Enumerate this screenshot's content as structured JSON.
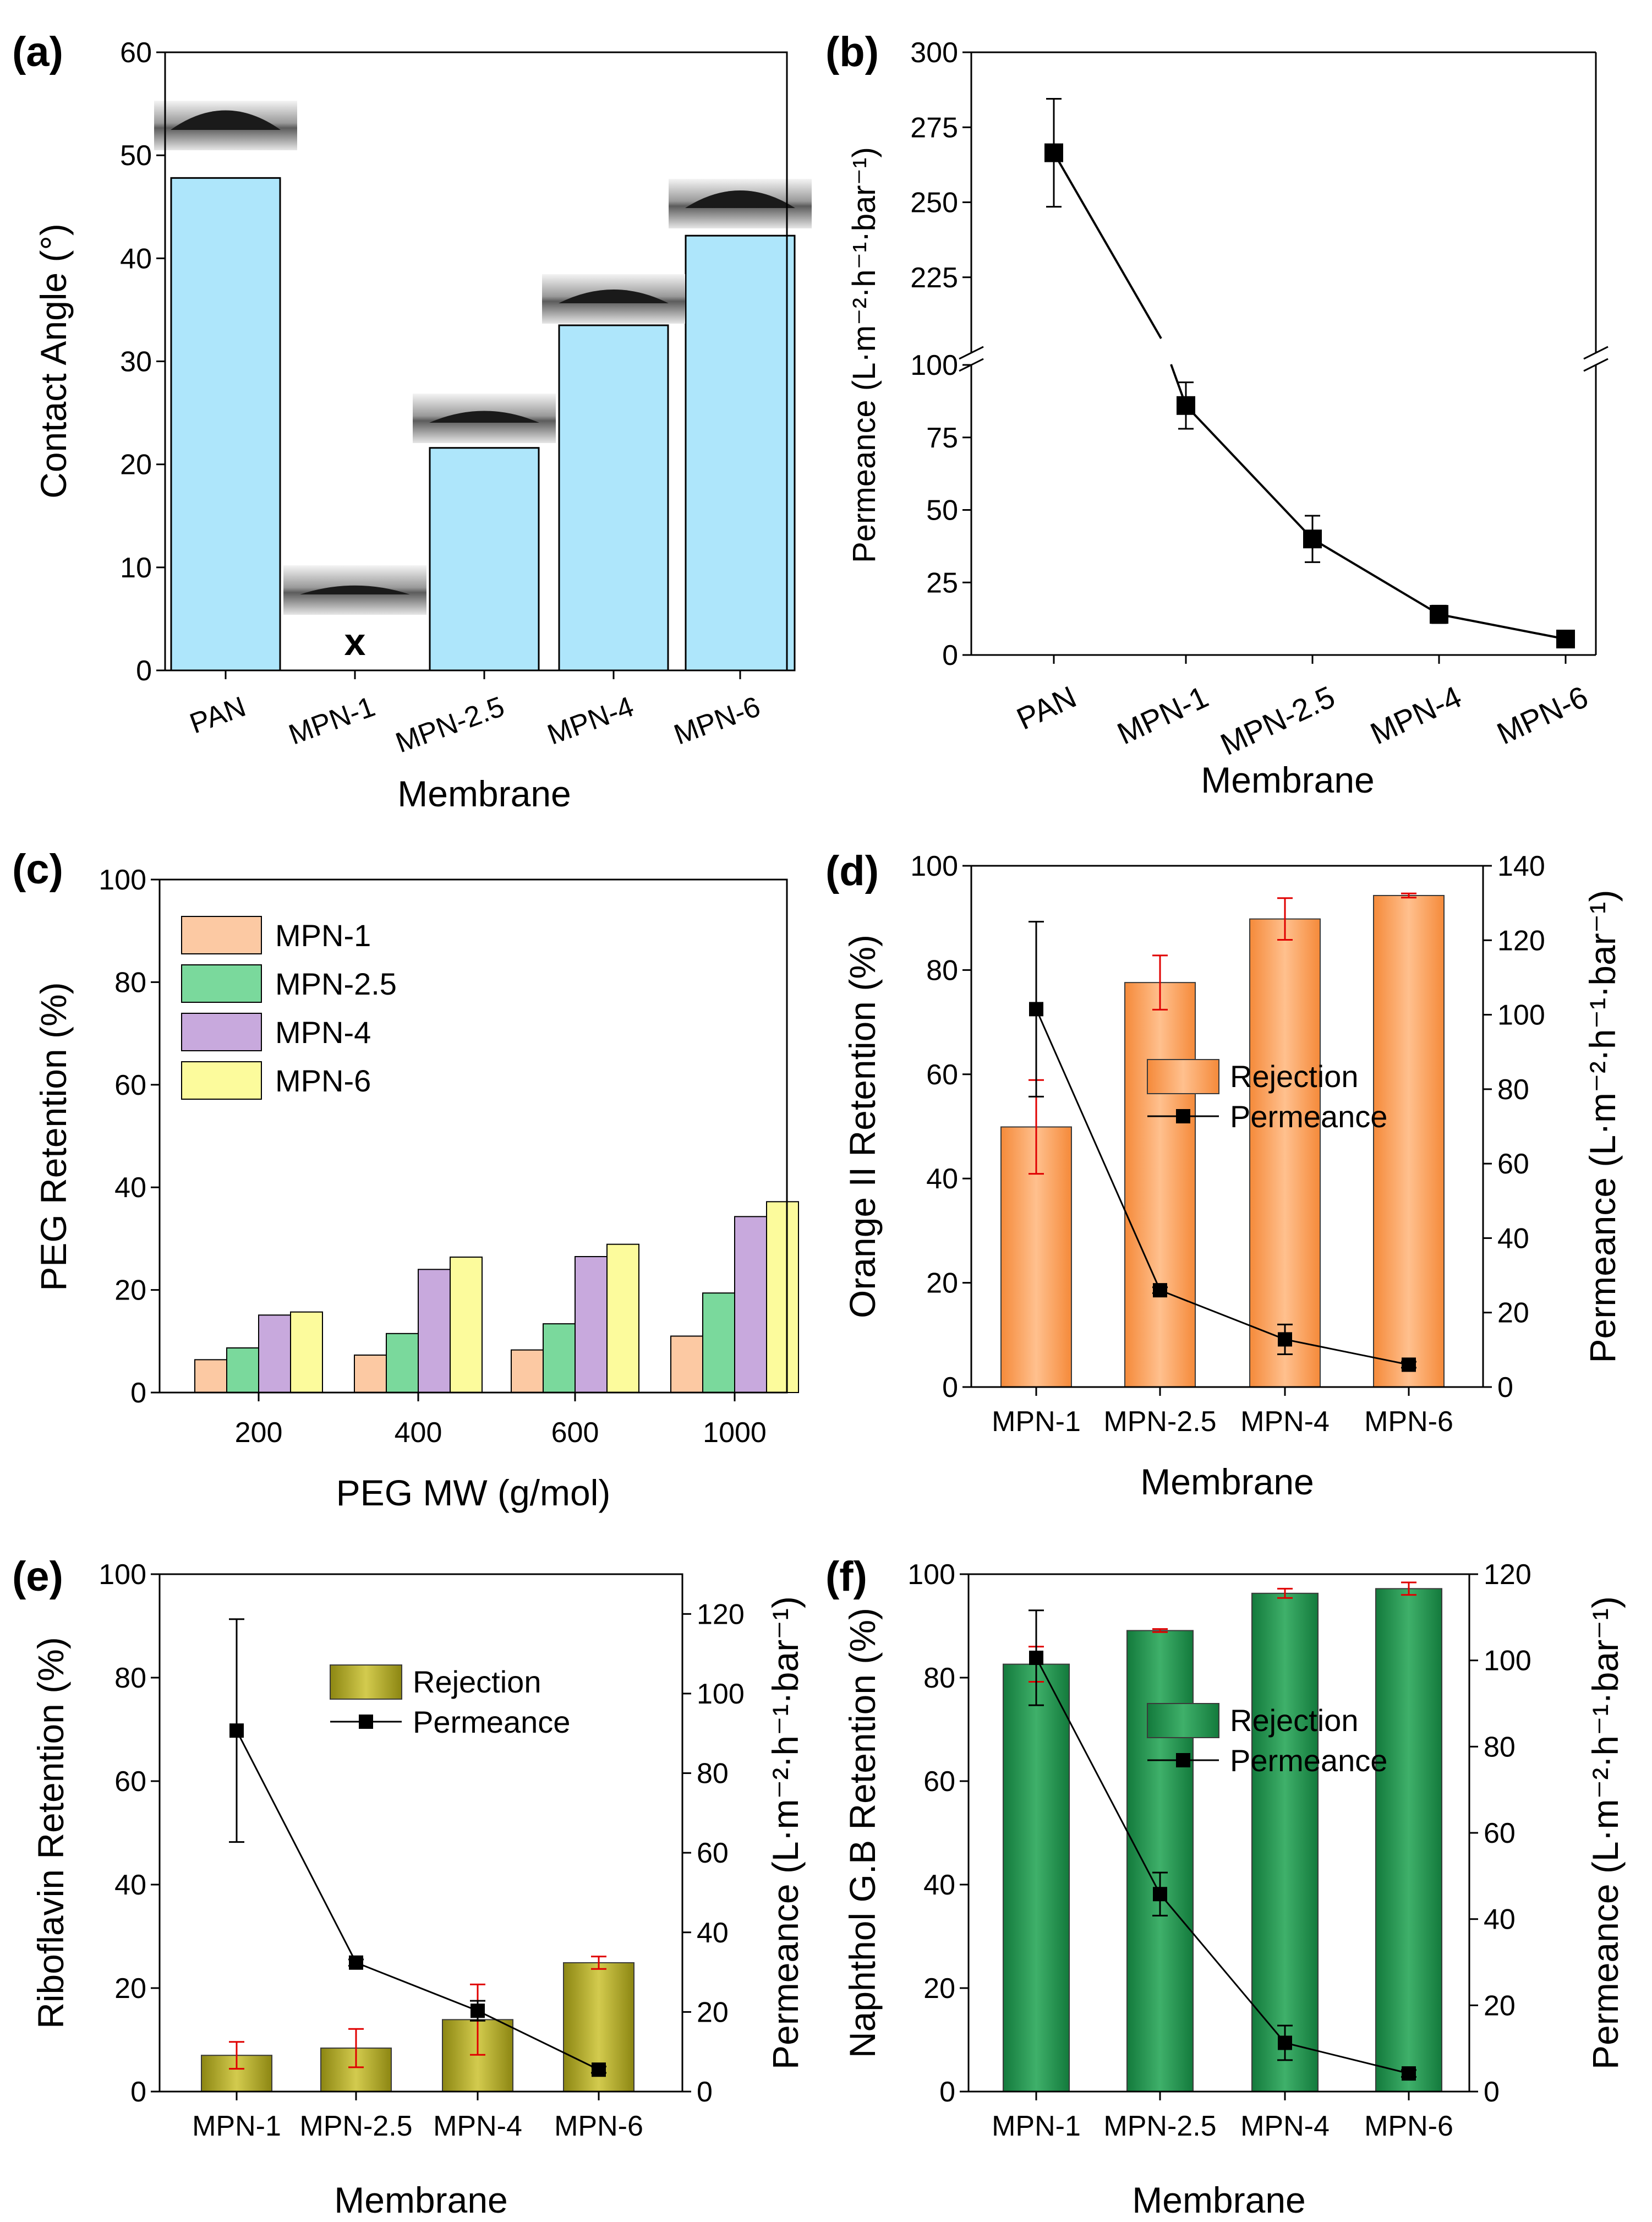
{
  "figure": {
    "panel_labels": [
      "(a)",
      "(b)",
      "(c)",
      "(d)",
      "(e)",
      "(f)"
    ]
  },
  "chart_data": [
    {
      "panel": "(a)",
      "type": "bar",
      "title": "",
      "xlabel": "Membrane",
      "ylabel": "Contact Angle (°)",
      "categories": [
        "PAN",
        "MPN-1",
        "MPN-2.5",
        "MPN-4",
        "MPN-6"
      ],
      "values": [
        47.8,
        0,
        21.6,
        33.5,
        42.2
      ],
      "missing_marker": "x",
      "missing_index": 1,
      "ylim": [
        0,
        60
      ],
      "yticks": [
        0,
        10,
        20,
        30,
        40,
        50,
        60
      ],
      "bar_color": "#aee6fb",
      "annotation": "droplet images above bars"
    },
    {
      "panel": "(b)",
      "type": "line",
      "xlabel": "Membrane",
      "ylabel": "Permeance (L·m⁻²·h⁻¹·bar⁻¹)",
      "categories": [
        "PAN",
        "MPN-1",
        "MPN-2.5",
        "MPN-4",
        "MPN-6"
      ],
      "values": [
        266.5,
        86,
        40,
        14,
        5.5
      ],
      "errors": [
        18,
        8,
        8,
        3,
        1.5
      ],
      "axis_break": {
        "lower": [
          0,
          100
        ],
        "upper": [
          200,
          300
        ]
      },
      "yticks": [
        0,
        25,
        50,
        75,
        100,
        225,
        250,
        275,
        300
      ]
    },
    {
      "panel": "(c)",
      "type": "bar",
      "xlabel": "PEG MW (g/mol)",
      "ylabel": "PEG Retention (%)",
      "categories": [
        "200",
        "400",
        "600",
        "1000"
      ],
      "series": [
        {
          "name": "MPN-1",
          "color": "#fcc9a3",
          "values": [
            6.4,
            7.3,
            8.3,
            11.0
          ]
        },
        {
          "name": "MPN-2.5",
          "color": "#7ad99c",
          "values": [
            8.7,
            11.5,
            13.4,
            19.4
          ]
        },
        {
          "name": "MPN-4",
          "color": "#c8a9dd",
          "values": [
            15.1,
            24.0,
            26.5,
            34.3
          ]
        },
        {
          "name": "MPN-6",
          "color": "#fcfb9c",
          "values": [
            15.7,
            26.4,
            28.9,
            37.2
          ]
        }
      ],
      "ylim": [
        0,
        100
      ],
      "yticks": [
        0,
        20,
        40,
        60,
        80,
        100
      ]
    },
    {
      "panel": "(d)",
      "type": "bar",
      "xlabel": "Membrane",
      "ylabel": "Orange II Retention (%)",
      "ylabel_right": "Permeance (L·m⁻²·h⁻¹·bar⁻¹)",
      "categories": [
        "MPN-1",
        "MPN-2.5",
        "MPN-4",
        "MPN-6"
      ],
      "bar_series": {
        "name": "Rejection",
        "color": "#f89a4e",
        "values": [
          49.9,
          77.6,
          89.8,
          94.3
        ],
        "errors": [
          9,
          5.2,
          4,
          0.4
        ]
      },
      "line_series": {
        "name": "Permeance",
        "values": [
          101.5,
          26.0,
          12.8,
          6.0
        ],
        "errors": [
          23.5,
          0.8,
          4,
          0.8
        ]
      },
      "ylim": [
        0,
        100
      ],
      "ylim_right": [
        0,
        140
      ],
      "yticks": [
        0,
        20,
        40,
        60,
        80,
        100
      ],
      "yticks_right": [
        0,
        20,
        40,
        60,
        80,
        100,
        120,
        140
      ]
    },
    {
      "panel": "(e)",
      "type": "bar",
      "xlabel": "Membrane",
      "ylabel": "Riboflavin Retention (%)",
      "ylabel_right": "Permeance (L·m⁻²·h⁻¹·bar⁻¹)",
      "categories": [
        "MPN-1",
        "MPN-2.5",
        "MPN-4",
        "MPN-6"
      ],
      "bar_series": {
        "name": "Rejection",
        "color": "#a8a022",
        "values": [
          7.0,
          8.4,
          13.9,
          24.9
        ],
        "errors": [
          2.6,
          3.7,
          6.8,
          1.2
        ]
      },
      "line_series": {
        "name": "Permeance",
        "values": [
          90.7,
          32.4,
          20.3,
          5.5
        ],
        "errors": [
          28,
          0.8,
          2.5,
          0.8
        ]
      },
      "ylim": [
        0,
        100
      ],
      "ylim_right": [
        0,
        130
      ],
      "yticks": [
        0,
        20,
        40,
        60,
        80,
        100
      ],
      "yticks_right": [
        0,
        20,
        40,
        60,
        80,
        100,
        120
      ]
    },
    {
      "panel": "(f)",
      "type": "bar",
      "xlabel": "Membrane",
      "ylabel": "Naphthol G.B Retention (%)",
      "ylabel_right": "Permeance (L·m⁻²·h⁻¹·bar⁻¹)",
      "categories": [
        "MPN-1",
        "MPN-2.5",
        "MPN-4",
        "MPN-6"
      ],
      "bar_series": {
        "name": "Rejection",
        "color": "#1e8a4c",
        "values": [
          82.6,
          89.1,
          96.3,
          97.2
        ],
        "errors": [
          3.4,
          0.3,
          0.9,
          1.2
        ]
      },
      "line_series": {
        "name": "Permeance",
        "values": [
          100.6,
          45.8,
          11.3,
          4.2
        ],
        "errors": [
          11,
          5,
          4,
          0.8
        ]
      },
      "ylim": [
        0,
        100
      ],
      "ylim_right": [
        0,
        120
      ],
      "yticks": [
        0,
        20,
        40,
        60,
        80,
        100
      ],
      "yticks_right": [
        0,
        20,
        40,
        60,
        80,
        100,
        120
      ]
    }
  ]
}
